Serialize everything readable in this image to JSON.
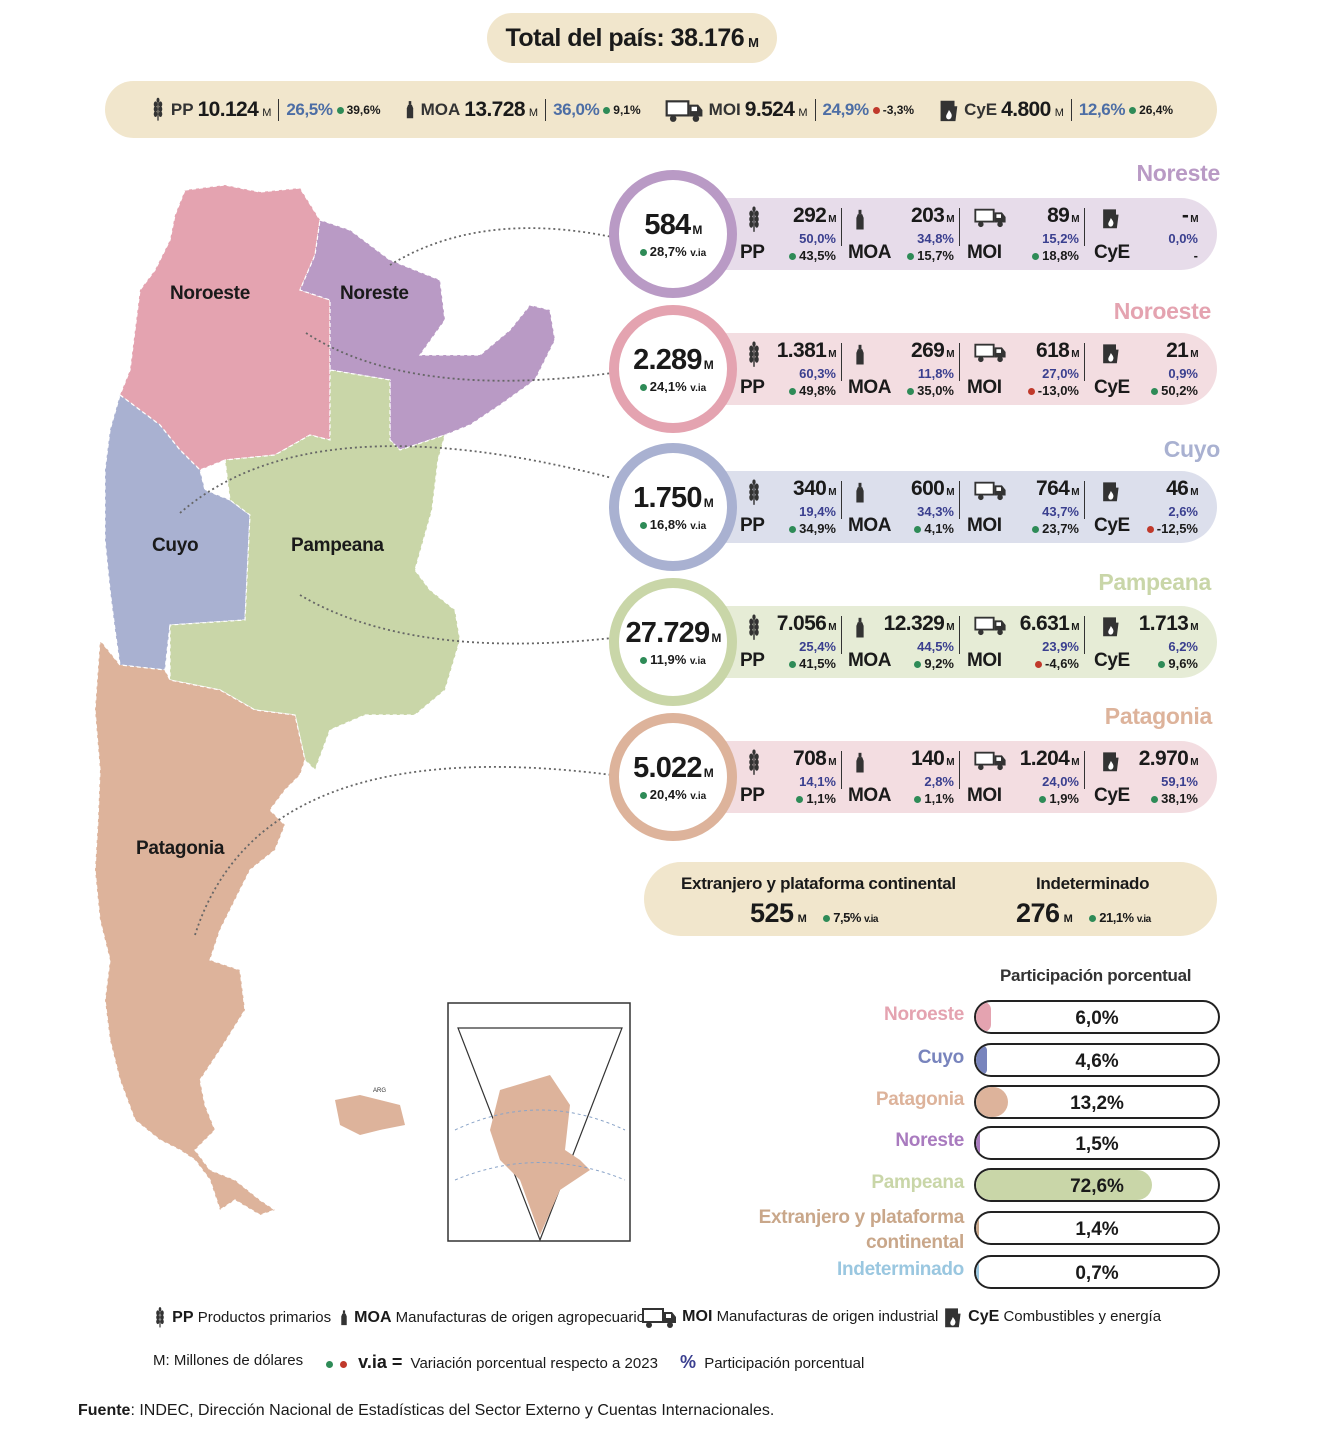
{
  "total": {
    "label": "Total del país: 38.176",
    "unit": "M"
  },
  "summary": [
    {
      "code": "PP",
      "value": "10.124",
      "unit": "M",
      "pct": "26,5%",
      "via": "39,6%",
      "via_color": "green",
      "icon": "wheat-icon"
    },
    {
      "code": "MOA",
      "value": "13.728",
      "unit": "M",
      "pct": "36,0%",
      "via": "9,1%",
      "via_color": "green",
      "icon": "bottle-icon"
    },
    {
      "code": "MOI",
      "value": "9.524",
      "unit": "M",
      "pct": "24,9%",
      "via": "-3,3%",
      "via_color": "red",
      "icon": "truck-icon"
    },
    {
      "code": "CyE",
      "value": "4.800",
      "unit": "M",
      "pct": "12,6%",
      "via": "26,4%",
      "via_color": "green",
      "icon": "fuel-icon"
    }
  ],
  "map_labels": {
    "noroeste": "Noroeste",
    "noreste": "Noreste",
    "cuyo": "Cuyo",
    "pampeana": "Pampeana",
    "patagonia": "Patagonia",
    "arg": "ARG"
  },
  "regions": [
    {
      "title": "Noreste",
      "color": "#b99ac5",
      "bg": "#e7dcea",
      "total": "584",
      "unit": "M",
      "via": "28,7%",
      "via_label": "v.ia",
      "cells": [
        {
          "code": "PP",
          "value": "292",
          "pct": "50,0%",
          "via": "43,5%",
          "via_color": "green"
        },
        {
          "code": "MOA",
          "value": "203",
          "pct": "34,8%",
          "via": "15,7%",
          "via_color": "green"
        },
        {
          "code": "MOI",
          "value": "89",
          "pct": "15,2%",
          "via": "18,8%",
          "via_color": "green"
        },
        {
          "code": "CyE",
          "value": "-",
          "pct": "0,0%",
          "via": "-",
          "via_color": "none"
        }
      ]
    },
    {
      "title": "Noroeste",
      "color": "#e4a3b0",
      "bg": "#f3dde1",
      "total": "2.289",
      "unit": "M",
      "via": "24,1%",
      "via_label": "v.ia",
      "cells": [
        {
          "code": "PP",
          "value": "1.381",
          "pct": "60,3%",
          "via": "49,8%",
          "via_color": "green"
        },
        {
          "code": "MOA",
          "value": "269",
          "pct": "11,8%",
          "via": "35,0%",
          "via_color": "green"
        },
        {
          "code": "MOI",
          "value": "618",
          "pct": "27,0%",
          "via": "-13,0%",
          "via_color": "red"
        },
        {
          "code": "CyE",
          "value": "21",
          "pct": "0,9%",
          "via": "50,2%",
          "via_color": "green"
        }
      ]
    },
    {
      "title": "Cuyo",
      "color": "#a9b1d1",
      "bg": "#dcdfec",
      "total": "1.750",
      "unit": "M",
      "via": "16,8%",
      "via_label": "v.ia",
      "cells": [
        {
          "code": "PP",
          "value": "340",
          "pct": "19,4%",
          "via": "34,9%",
          "via_color": "green"
        },
        {
          "code": "MOA",
          "value": "600",
          "pct": "34,3%",
          "via": "4,1%",
          "via_color": "green"
        },
        {
          "code": "MOI",
          "value": "764",
          "pct": "43,7%",
          "via": "23,7%",
          "via_color": "green"
        },
        {
          "code": "CyE",
          "value": "46",
          "pct": "2,6%",
          "via": "-12,5%",
          "via_color": "red"
        }
      ]
    },
    {
      "title": "Pampeana",
      "color": "#c9d6a8",
      "bg": "#e6ecd6",
      "total": "27.729",
      "unit": "M",
      "via": "11,9%",
      "via_label": "v.ia",
      "cells": [
        {
          "code": "PP",
          "value": "7.056",
          "pct": "25,4%",
          "via": "41,5%",
          "via_color": "green"
        },
        {
          "code": "MOA",
          "value": "12.329",
          "pct": "44,5%",
          "via": "9,2%",
          "via_color": "green"
        },
        {
          "code": "MOI",
          "value": "6.631",
          "pct": "23,9%",
          "via": "-4,6%",
          "via_color": "red"
        },
        {
          "code": "CyE",
          "value": "1.713",
          "pct": "6,2%",
          "via": "9,6%",
          "via_color": "green"
        }
      ]
    },
    {
      "title": "Patagonia",
      "color": "#ddb39b",
      "bg": "#f3dde1",
      "total": "5.022",
      "unit": "M",
      "via": "20,4%",
      "via_label": "v.ia",
      "cells": [
        {
          "code": "PP",
          "value": "708",
          "pct": "14,1%",
          "via": "1,1%",
          "via_color": "green"
        },
        {
          "code": "MOA",
          "value": "140",
          "pct": "2,8%",
          "via": "1,1%",
          "via_color": "green"
        },
        {
          "code": "MOI",
          "value": "1.204",
          "pct": "24,0%",
          "via": "1,9%",
          "via_color": "green"
        },
        {
          "code": "CyE",
          "value": "2.970",
          "pct": "59,1%",
          "via": "38,1%",
          "via_color": "green"
        }
      ]
    }
  ],
  "extra": {
    "foreign_title": "Extranjero y plataforma continental",
    "foreign_value": "525",
    "foreign_unit": "M",
    "foreign_via": "7,5%",
    "undetermined_title": "Indeterminado",
    "undetermined_value": "276",
    "undetermined_unit": "M",
    "undetermined_via": "21,1%",
    "via_label": "v.ia"
  },
  "participation": {
    "title": "Participación porcentual",
    "rows": [
      {
        "name": "Noroeste",
        "value": "6,0%",
        "fraction": 0.06,
        "color": "#e4a3b0"
      },
      {
        "name": "Cuyo",
        "value": "4,6%",
        "fraction": 0.046,
        "color": "#7884bd"
      },
      {
        "name": "Patagonia",
        "value": "13,2%",
        "fraction": 0.132,
        "color": "#ddb39b"
      },
      {
        "name": "Noreste",
        "value": "1,5%",
        "fraction": 0.015,
        "color": "#a97bbf"
      },
      {
        "name": "Pampeana",
        "value": "72,6%",
        "fraction": 0.726,
        "color": "#c9d6a8"
      },
      {
        "name": "Extranjero y plataforma continental",
        "value": "1,4%",
        "fraction": 0.014,
        "color": "#c9a78a"
      },
      {
        "name": "Indeterminado",
        "value": "0,7%",
        "fraction": 0.007,
        "color": "#9ac7e0"
      }
    ]
  },
  "legend": {
    "pp": "PP",
    "pp_text": "Productos primarios",
    "moa": "MOA",
    "moa_text": "Manufacturas de origen agropecuario",
    "moi": "MOI",
    "moi_text": "Manufacturas de origen industrial",
    "cye": "CyE",
    "cye_text": "Combustibles y energía",
    "m_text": "M: Millones de dólares",
    "via_symbol": "v.ia =",
    "via_text": "Variación porcentual respecto a 2023",
    "pct_symbol": "%",
    "pct_text": "Participación porcentual"
  },
  "source": {
    "label": "Fuente",
    "text": ": INDEC, Dirección Nacional de Estadísticas del Sector Externo y Cuentas Internacionales."
  }
}
